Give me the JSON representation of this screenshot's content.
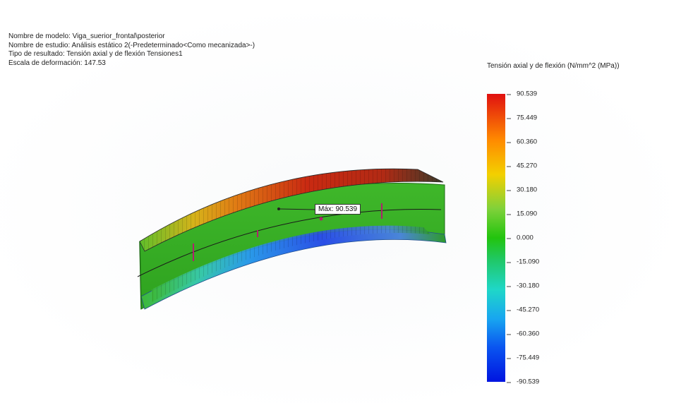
{
  "study_info": {
    "model_line": "Nombre de modelo: Viga_suerior_frontal\\posterior",
    "study_line": "Nombre de estudio: Análisis estático 2(-Predeterminado<Como mecanizada>-)",
    "result_line": "Tipo de resultado: Tensión axial y de flexión Tensiones1",
    "scale_line": "Escala de deformación: 147.53"
  },
  "legend": {
    "title": "Tensión axial y de flexión (N/mm^2 (MPa))",
    "ticks": [
      "90.539",
      "75.449",
      "60.360",
      "45.270",
      "30.180",
      "15.090",
      "0.000",
      "-15.090",
      "-30.180",
      "-45.270",
      "-60.360",
      "-75.449",
      "-90.539"
    ],
    "colors": {
      "max": "#e01010",
      "orange": "#ff8a00",
      "yellow": "#f3d000",
      "green": "#22c40e",
      "cyan": "#1fd7c8",
      "blue": "#0a55f0",
      "min": "#0014e0"
    }
  },
  "annotation": {
    "max_label": "Máx: 90.539"
  }
}
